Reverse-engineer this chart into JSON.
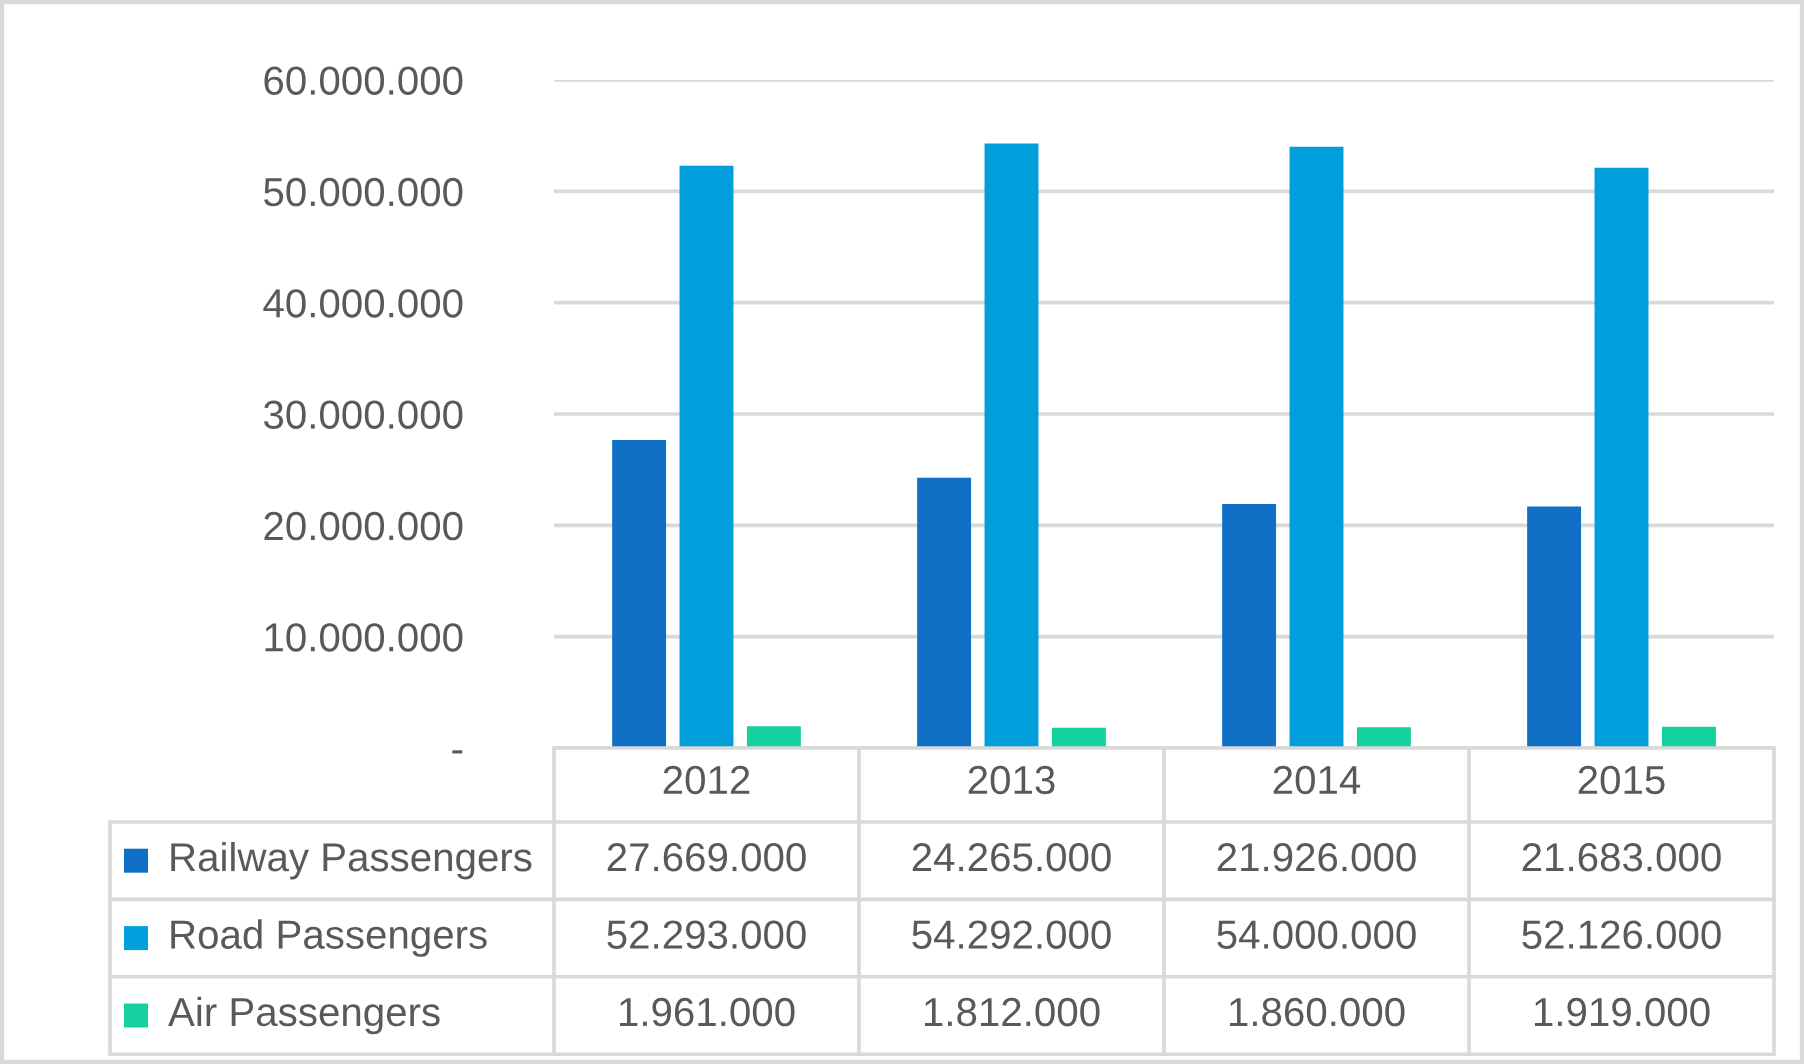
{
  "chart_data": {
    "type": "bar",
    "categories": [
      "2012",
      "2013",
      "2014",
      "2015"
    ],
    "series": [
      {
        "name": "Railway Passengers",
        "color": "#0f70c6",
        "values": [
          27669000,
          24265000,
          21926000,
          21683000
        ],
        "value_labels": [
          "27.669.000",
          "24.265.000",
          "21.926.000",
          "21.683.000"
        ]
      },
      {
        "name": "Road Passengers",
        "color": "#019edb",
        "values": [
          52293000,
          54292000,
          54000000,
          52126000
        ],
        "value_labels": [
          "52.293.000",
          "54.292.000",
          "54.000.000",
          "52.126.000"
        ]
      },
      {
        "name": "Air Passengers",
        "color": "#13d09e",
        "values": [
          1961000,
          1812000,
          1860000,
          1919000
        ],
        "value_labels": [
          "1.961.000",
          "1.812.000",
          "1.860.000",
          "1.919.000"
        ]
      }
    ],
    "ylim": [
      0,
      60000000
    ],
    "yticks": [
      {
        "value": 0,
        "label": "-"
      },
      {
        "value": 10000000,
        "label": "10.000.000"
      },
      {
        "value": 20000000,
        "label": "20.000.000"
      },
      {
        "value": 30000000,
        "label": "30.000.000"
      },
      {
        "value": 40000000,
        "label": "40.000.000"
      },
      {
        "value": 50000000,
        "label": "50.000.000"
      },
      {
        "value": 60000000,
        "label": "60.000.000"
      }
    ],
    "grid": "y",
    "legend": "bottom"
  }
}
